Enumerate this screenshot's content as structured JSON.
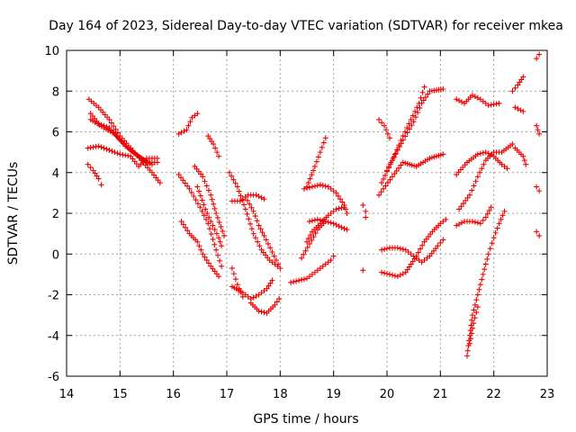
{
  "chart_data": {
    "type": "scatter",
    "title": "Day 164 of 2023, Sidereal Day-to-day VTEC variation (SDTVAR) for receiver mkea",
    "xlabel": "GPS time / hours",
    "ylabel": "SDTVAR / TECUs",
    "xlim": [
      14,
      23
    ],
    "ylim": [
      -6,
      10
    ],
    "xticks": [
      "14",
      "15",
      "16",
      "17",
      "18",
      "19",
      "20",
      "21",
      "22",
      "23"
    ],
    "yticks": [
      "-6",
      "-4",
      "-2",
      "0",
      "2",
      "4",
      "6",
      "8",
      "10"
    ],
    "grid": true,
    "marker": "plus",
    "color": "#ee0000",
    "series": [
      {
        "name": "s1",
        "points": [
          [
            14.42,
            7.6
          ],
          [
            14.6,
            7.2
          ],
          [
            14.8,
            6.6
          ],
          [
            15.0,
            5.8
          ],
          [
            15.2,
            5.2
          ],
          [
            15.4,
            4.6
          ],
          [
            15.6,
            4.0
          ],
          [
            15.75,
            3.5
          ]
        ]
      },
      {
        "name": "s2",
        "points": [
          [
            14.45,
            6.6
          ],
          [
            14.7,
            6.2
          ],
          [
            14.9,
            5.9
          ],
          [
            15.1,
            5.3
          ],
          [
            15.3,
            4.9
          ],
          [
            15.5,
            4.5
          ],
          [
            15.7,
            4.5
          ]
        ]
      },
      {
        "name": "s3",
        "points": [
          [
            14.45,
            6.9
          ],
          [
            14.6,
            6.4
          ],
          [
            14.8,
            6.2
          ],
          [
            15.0,
            5.6
          ],
          [
            15.2,
            5.1
          ],
          [
            15.4,
            4.7
          ],
          [
            15.6,
            4.4
          ]
        ]
      },
      {
        "name": "s4",
        "points": [
          [
            14.4,
            5.2
          ],
          [
            14.6,
            5.3
          ],
          [
            14.8,
            5.1
          ],
          [
            15.0,
            4.9
          ],
          [
            15.2,
            4.8
          ],
          [
            15.35,
            4.3
          ],
          [
            15.5,
            4.7
          ],
          [
            15.7,
            4.7
          ]
        ]
      },
      {
        "name": "s5",
        "points": [
          [
            14.4,
            4.4
          ],
          [
            14.5,
            4.1
          ],
          [
            14.6,
            3.7
          ],
          [
            14.65,
            3.4
          ]
        ]
      },
      {
        "name": "s6",
        "points": [
          [
            16.1,
            5.9
          ],
          [
            16.25,
            6.1
          ],
          [
            16.35,
            6.7
          ],
          [
            16.45,
            6.9
          ]
        ]
      },
      {
        "name": "s7",
        "points": [
          [
            16.1,
            3.9
          ],
          [
            16.3,
            3.2
          ],
          [
            16.5,
            2.3
          ],
          [
            16.65,
            1.5
          ],
          [
            16.8,
            0.2
          ],
          [
            16.9,
            -0.6
          ]
        ]
      },
      {
        "name": "s8",
        "points": [
          [
            16.15,
            1.6
          ],
          [
            16.3,
            1.0
          ],
          [
            16.45,
            0.6
          ],
          [
            16.55,
            0.0
          ],
          [
            16.7,
            -0.6
          ],
          [
            16.85,
            -1.1
          ]
        ]
      },
      {
        "name": "s9",
        "points": [
          [
            16.4,
            4.3
          ],
          [
            16.55,
            3.8
          ],
          [
            16.7,
            2.9
          ],
          [
            16.8,
            2.0
          ],
          [
            16.95,
            0.9
          ]
        ]
      },
      {
        "name": "s10",
        "points": [
          [
            16.65,
            5.8
          ],
          [
            16.75,
            5.4
          ],
          [
            16.85,
            4.8
          ]
        ]
      },
      {
        "name": "s11",
        "points": [
          [
            16.45,
            3.3
          ],
          [
            16.6,
            2.2
          ],
          [
            16.7,
            1.6
          ],
          [
            16.85,
            0.8
          ],
          [
            16.9,
            0.4
          ]
        ]
      },
      {
        "name": "s12",
        "points": [
          [
            17.05,
            4.0
          ],
          [
            17.2,
            3.3
          ],
          [
            17.35,
            2.2
          ],
          [
            17.5,
            1.0
          ],
          [
            17.65,
            0.2
          ],
          [
            17.8,
            -0.3
          ],
          [
            17.95,
            -0.6
          ]
        ]
      },
      {
        "name": "s13",
        "points": [
          [
            17.1,
            -0.7
          ],
          [
            17.2,
            -1.5
          ],
          [
            17.3,
            -2.1
          ]
        ]
      },
      {
        "name": "s14",
        "points": [
          [
            17.1,
            -1.6
          ],
          [
            17.3,
            -1.9
          ],
          [
            17.45,
            -2.2
          ],
          [
            17.6,
            -2.0
          ],
          [
            17.75,
            -1.7
          ],
          [
            17.85,
            -1.3
          ]
        ]
      },
      {
        "name": "s15",
        "points": [
          [
            17.45,
            -2.4
          ],
          [
            17.6,
            -2.8
          ],
          [
            17.75,
            -2.9
          ],
          [
            17.9,
            -2.5
          ],
          [
            17.98,
            -2.2
          ]
        ]
      },
      {
        "name": "s16",
        "points": [
          [
            17.1,
            2.6
          ],
          [
            17.25,
            2.6
          ],
          [
            17.4,
            2.9
          ],
          [
            17.55,
            2.9
          ],
          [
            17.7,
            2.7
          ]
        ]
      },
      {
        "name": "s17",
        "points": [
          [
            17.35,
            2.8
          ],
          [
            17.5,
            2.1
          ],
          [
            17.6,
            1.4
          ],
          [
            17.7,
            0.9
          ],
          [
            17.85,
            0.1
          ],
          [
            18.0,
            -0.7
          ]
        ]
      },
      {
        "name": "s18",
        "points": [
          [
            18.2,
            -1.4
          ],
          [
            18.35,
            -1.3
          ],
          [
            18.5,
            -1.2
          ],
          [
            18.65,
            -0.9
          ],
          [
            18.8,
            -0.6
          ],
          [
            18.95,
            -0.3
          ],
          [
            19.0,
            -0.1
          ]
        ]
      },
      {
        "name": "s19",
        "points": [
          [
            18.5,
            3.3
          ],
          [
            18.65,
            4.3
          ],
          [
            18.75,
            5.0
          ],
          [
            18.85,
            5.7
          ]
        ]
      },
      {
        "name": "s20",
        "points": [
          [
            18.45,
            3.2
          ],
          [
            18.6,
            3.3
          ],
          [
            18.75,
            3.4
          ],
          [
            18.9,
            3.3
          ],
          [
            19.05,
            3.0
          ],
          [
            19.2,
            2.4
          ],
          [
            19.25,
            2.0
          ]
        ]
      },
      {
        "name": "s21",
        "points": [
          [
            18.55,
            1.6
          ],
          [
            18.7,
            1.7
          ],
          [
            18.85,
            1.6
          ],
          [
            19.0,
            1.5
          ],
          [
            19.15,
            1.3
          ],
          [
            19.25,
            1.2
          ]
        ]
      },
      {
        "name": "s22",
        "points": [
          [
            18.5,
            0.6
          ],
          [
            18.6,
            1.1
          ],
          [
            18.75,
            1.5
          ],
          [
            18.9,
            1.9
          ],
          [
            19.05,
            2.2
          ],
          [
            19.2,
            2.3
          ]
        ]
      },
      {
        "name": "s23",
        "points": [
          [
            18.4,
            -0.2
          ],
          [
            18.55,
            0.5
          ],
          [
            18.7,
            1.2
          ],
          [
            18.85,
            1.6
          ]
        ]
      },
      {
        "name": "s24",
        "points": [
          [
            19.55,
            2.4
          ],
          [
            19.6,
            2.1
          ],
          [
            19.6,
            1.8
          ]
        ]
      },
      {
        "name": "s25",
        "points": [
          [
            19.55,
            -0.8
          ]
        ]
      },
      {
        "name": "s26",
        "points": [
          [
            19.85,
            6.6
          ],
          [
            19.95,
            6.3
          ],
          [
            20.05,
            5.7
          ]
        ]
      },
      {
        "name": "s27",
        "points": [
          [
            19.85,
            2.9
          ],
          [
            20.1,
            3.8
          ],
          [
            20.3,
            4.5
          ],
          [
            20.55,
            4.3
          ],
          [
            20.8,
            4.7
          ],
          [
            21.05,
            4.9
          ]
        ]
      },
      {
        "name": "s28",
        "points": [
          [
            19.9,
            3.5
          ],
          [
            20.1,
            4.6
          ],
          [
            20.3,
            5.6
          ],
          [
            20.5,
            6.5
          ],
          [
            20.65,
            7.4
          ],
          [
            20.8,
            8.0
          ],
          [
            21.05,
            8.1
          ]
        ]
      },
      {
        "name": "s29",
        "points": [
          [
            20.0,
            4.1
          ],
          [
            20.15,
            4.9
          ],
          [
            20.3,
            5.8
          ],
          [
            20.45,
            6.6
          ],
          [
            20.6,
            7.4
          ],
          [
            20.7,
            8.2
          ]
        ]
      },
      {
        "name": "s30",
        "points": [
          [
            19.9,
            0.2
          ],
          [
            20.05,
            0.3
          ],
          [
            20.2,
            0.3
          ],
          [
            20.35,
            0.2
          ],
          [
            20.5,
            -0.1
          ],
          [
            20.65,
            -0.4
          ],
          [
            20.8,
            -0.1
          ],
          [
            20.95,
            0.4
          ],
          [
            21.05,
            0.7
          ]
        ]
      },
      {
        "name": "s31",
        "points": [
          [
            19.9,
            -0.9
          ],
          [
            20.05,
            -1.0
          ],
          [
            20.2,
            -1.1
          ],
          [
            20.35,
            -0.9
          ],
          [
            20.45,
            -0.5
          ],
          [
            20.55,
            -0.1
          ],
          [
            20.7,
            0.6
          ],
          [
            20.85,
            1.1
          ],
          [
            21.0,
            1.5
          ],
          [
            21.1,
            1.7
          ]
        ]
      },
      {
        "name": "s32",
        "points": [
          [
            21.3,
            7.6
          ],
          [
            21.45,
            7.4
          ],
          [
            21.6,
            7.8
          ],
          [
            21.75,
            7.6
          ],
          [
            21.9,
            7.3
          ],
          [
            22.1,
            7.4
          ]
        ]
      },
      {
        "name": "s33",
        "points": [
          [
            21.3,
            3.9
          ],
          [
            21.5,
            4.5
          ],
          [
            21.7,
            4.9
          ],
          [
            21.85,
            5.0
          ],
          [
            22.0,
            4.8
          ],
          [
            22.15,
            4.4
          ],
          [
            22.25,
            4.2
          ]
        ]
      },
      {
        "name": "s34",
        "points": [
          [
            21.35,
            2.2
          ],
          [
            21.55,
            2.9
          ],
          [
            21.7,
            3.8
          ],
          [
            21.85,
            4.6
          ],
          [
            22.0,
            5.0
          ],
          [
            22.15,
            5.0
          ],
          [
            22.35,
            5.4
          ]
        ]
      },
      {
        "name": "s35",
        "points": [
          [
            21.3,
            1.4
          ],
          [
            21.45,
            1.6
          ],
          [
            21.6,
            1.6
          ],
          [
            21.75,
            1.5
          ],
          [
            21.85,
            1.8
          ],
          [
            21.95,
            2.3
          ]
        ]
      },
      {
        "name": "s36",
        "points": [
          [
            21.5,
            -5.0
          ],
          [
            21.55,
            -4.0
          ],
          [
            21.6,
            -3.0
          ],
          [
            21.7,
            -2.0
          ],
          [
            21.8,
            -1.0
          ],
          [
            21.9,
            0.0
          ],
          [
            22.0,
            0.8
          ],
          [
            22.1,
            1.5
          ],
          [
            22.2,
            2.1
          ]
        ]
      },
      {
        "name": "s37",
        "points": [
          [
            21.55,
            -4.4
          ],
          [
            21.62,
            -3.4
          ],
          [
            21.7,
            -2.6
          ]
        ]
      },
      {
        "name": "s38",
        "points": [
          [
            22.35,
            8.0
          ],
          [
            22.45,
            8.3
          ],
          [
            22.55,
            8.7
          ]
        ]
      },
      {
        "name": "s39",
        "points": [
          [
            22.4,
            7.2
          ],
          [
            22.55,
            7.0
          ]
        ]
      },
      {
        "name": "s40",
        "points": [
          [
            22.4,
            5.2
          ],
          [
            22.55,
            4.8
          ],
          [
            22.6,
            4.4
          ]
        ]
      },
      {
        "name": "s41",
        "points": [
          [
            22.8,
            9.6
          ],
          [
            22.85,
            9.8
          ]
        ]
      },
      {
        "name": "s42",
        "points": [
          [
            22.8,
            6.3
          ],
          [
            22.85,
            5.9
          ]
        ]
      },
      {
        "name": "s43",
        "points": [
          [
            22.8,
            3.3
          ],
          [
            22.85,
            3.1
          ]
        ]
      },
      {
        "name": "s44",
        "points": [
          [
            22.8,
            1.1
          ],
          [
            22.85,
            0.9
          ]
        ]
      }
    ]
  }
}
